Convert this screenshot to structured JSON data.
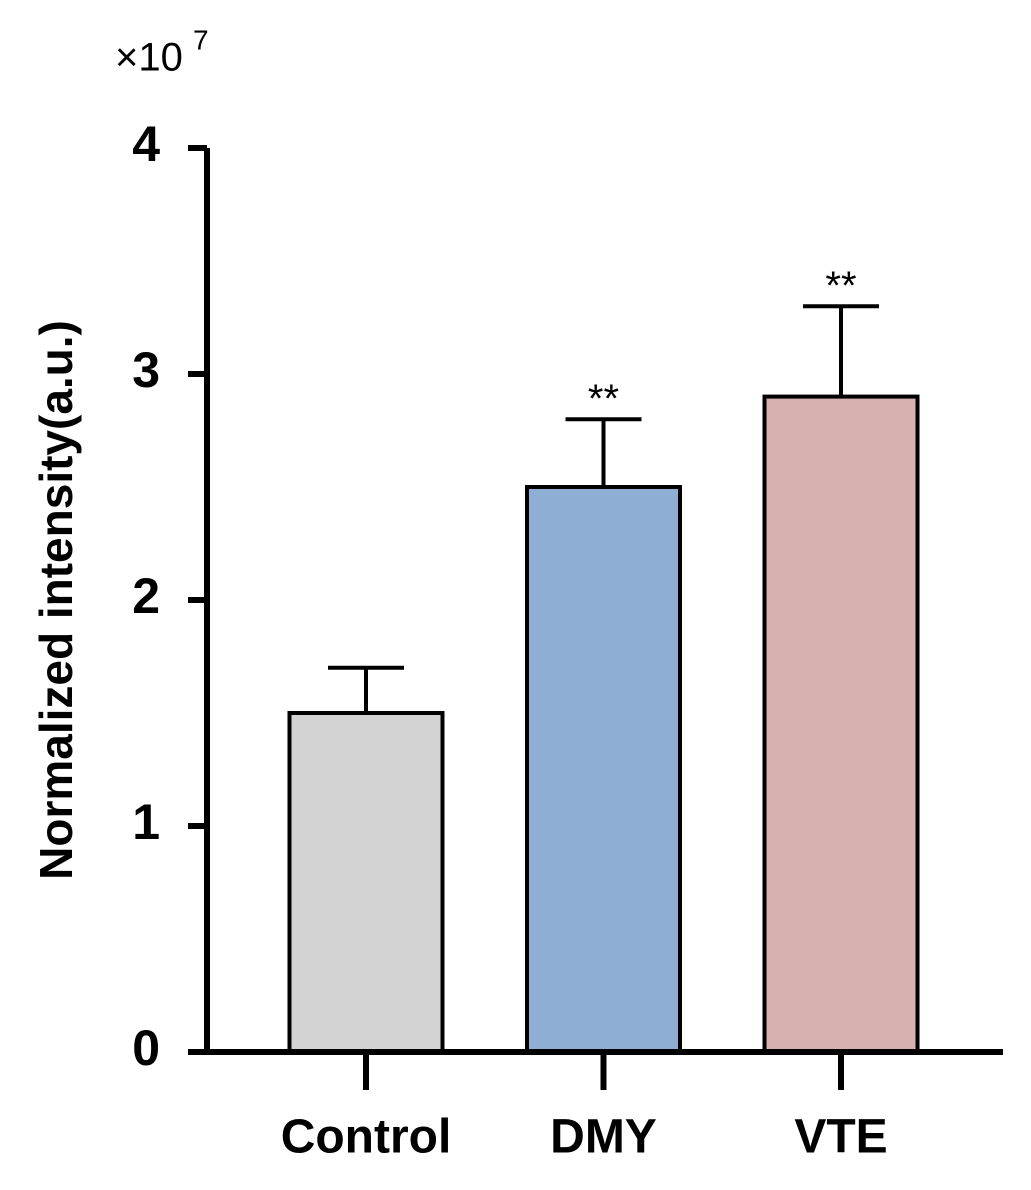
{
  "chart_data": {
    "type": "bar",
    "y_label": "Normalized intensity(a.u.)",
    "y_multiplier": {
      "base": "×10",
      "exponent": "7"
    },
    "categories": [
      "Control",
      "DMY",
      "VTE"
    ],
    "values": [
      1.5,
      2.5,
      2.9
    ],
    "errors": [
      0.2,
      0.3,
      0.4
    ],
    "significance": [
      null,
      "**",
      "**"
    ],
    "colors": [
      "#d3d3d3",
      "#8eaed4",
      "#d6b1b0"
    ],
    "ylim": [
      0,
      4
    ],
    "yticks": [
      0,
      1,
      2,
      3,
      4
    ]
  }
}
